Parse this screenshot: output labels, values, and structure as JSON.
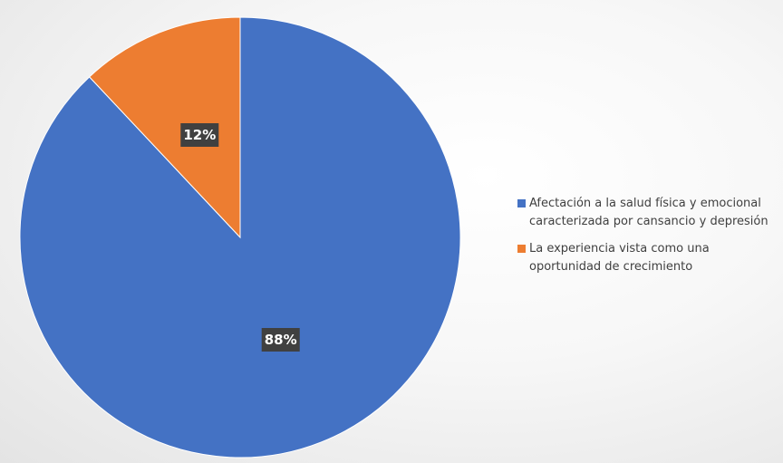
{
  "chart_data": {
    "type": "pie",
    "categories": [
      "Afectación a la salud física y emocional caracterizada por cansancio y depresión",
      "La experiencia vista como una oportunidad de crecimiento"
    ],
    "values": [
      88,
      12
    ],
    "data_labels": [
      "88%",
      "12%"
    ],
    "colors": [
      "#4472C4",
      "#ED7D31"
    ],
    "title": "",
    "legend_position": "right",
    "start_angle": "top, clockwise"
  }
}
